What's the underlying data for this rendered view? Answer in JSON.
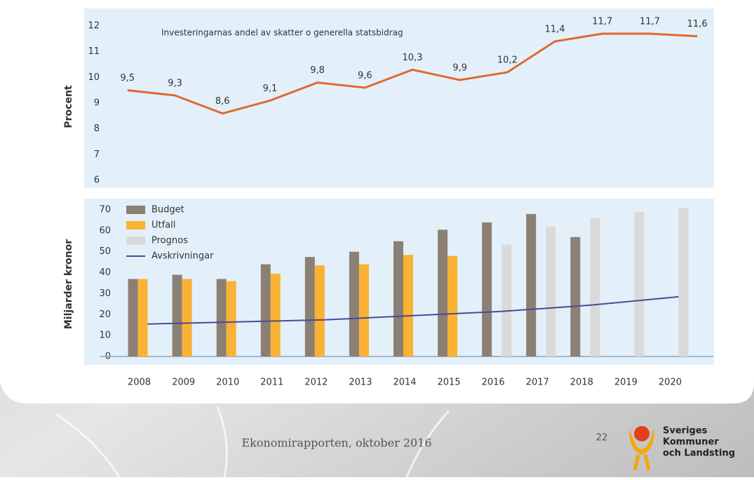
{
  "chart_data": [
    {
      "type": "line",
      "annotation": "Investeringarnas andel av skatter o generella statsbidrag",
      "ylabel": "Procent",
      "values": [
        9.5,
        9.3,
        8.6,
        9.1,
        9.8,
        9.6,
        10.3,
        9.9,
        10.2,
        11.4,
        11.7,
        11.7,
        11.6
      ],
      "value_labels": [
        "9,5",
        "9,3",
        "8,6",
        "9,1",
        "9,8",
        "9,6",
        "10,3",
        "9,9",
        "10,2",
        "11,4",
        "11,7",
        "11,7",
        "11,6"
      ],
      "color": "#e06a2c",
      "ylim": [
        6,
        12
      ],
      "yticks": [
        6,
        7,
        8,
        9,
        10,
        11,
        12
      ]
    },
    {
      "type": "bar",
      "ylabel": "Miljarder kronor",
      "categories": [
        "2008",
        "2009",
        "2010",
        "2011",
        "2012",
        "2013",
        "2014",
        "2015",
        "2016",
        "2017",
        "2018",
        "2019",
        "2020"
      ],
      "series": [
        {
          "name": "Budget",
          "color": "#8c7f73",
          "values": [
            37,
            39,
            37,
            44,
            47.5,
            50,
            55,
            60.5,
            64,
            68,
            57,
            null,
            null
          ]
        },
        {
          "name": "Utfall",
          "color": "#f9b233",
          "values": [
            37,
            37,
            36,
            39.5,
            43.5,
            44,
            48.5,
            48,
            null,
            null,
            null,
            null,
            null
          ]
        },
        {
          "name": "Prognos",
          "color": "#dadada",
          "values": [
            null,
            null,
            null,
            null,
            null,
            null,
            null,
            null,
            53.5,
            62,
            66,
            69,
            71
          ]
        },
        {
          "name": "Avskrivningar",
          "color": "#4a4a96",
          "type": "line",
          "values": [
            15.5,
            16,
            16.5,
            17,
            17.5,
            18.5,
            19.5,
            20.5,
            21.5,
            23,
            24.5,
            26.5,
            28.5
          ]
        }
      ],
      "ylim": [
        0,
        70
      ],
      "yticks": [
        0,
        10,
        20,
        30,
        40,
        50,
        60,
        70
      ],
      "legend": "upper left"
    }
  ],
  "footer": {
    "source": "Ekonomirapporten, oktober 2016",
    "page": "22",
    "logo": [
      "Sveriges",
      "Kommuner",
      "och Landsting"
    ]
  }
}
